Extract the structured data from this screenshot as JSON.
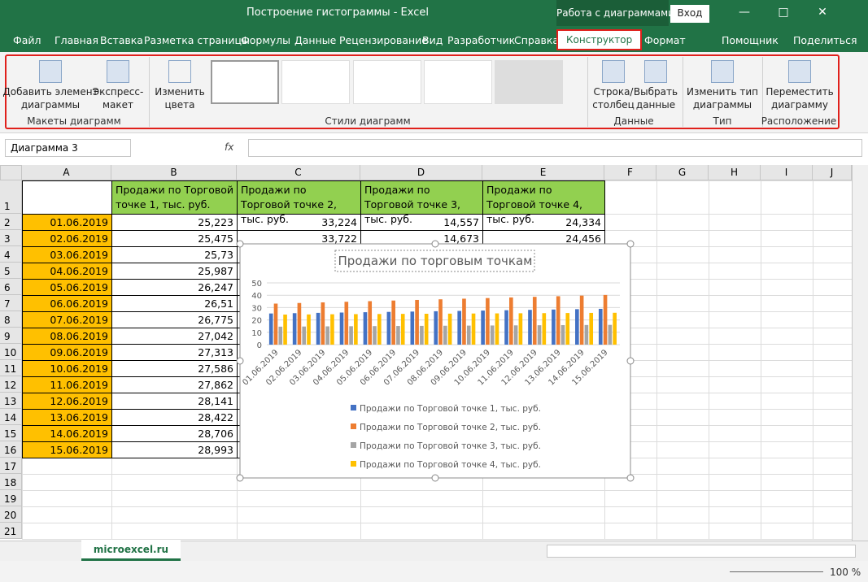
{
  "title_bar": {
    "title": "Построение гистограммы  -  Excel",
    "context_tab": "Работа с диаграммами",
    "sign_in": "Вход"
  },
  "ribbon": {
    "tabs": [
      "Файл",
      "Главная",
      "Вставка",
      "Разметка страницы",
      "Формулы",
      "Данные",
      "Рецензирование",
      "Вид",
      "Разработчик",
      "Справка",
      "Конструктор",
      "Формат",
      "Помощник",
      "Поделиться"
    ],
    "groups": [
      {
        "name": "Макеты диаграмм",
        "buttons": [
          [
            "Добавить элемент",
            "диаграммы"
          ],
          [
            "Экспресс-",
            "макет"
          ]
        ]
      },
      {
        "name": "Стили диаграмм",
        "buttons": [
          [
            "Изменить",
            "цвета"
          ]
        ]
      },
      {
        "name": "Данные",
        "buttons": [
          [
            "Строка/",
            "столбец"
          ],
          [
            "Выбрать",
            "данные"
          ]
        ]
      },
      {
        "name": "Тип",
        "buttons": [
          [
            "Изменить тип",
            "диаграммы"
          ]
        ]
      },
      {
        "name": "Расположение",
        "buttons": [
          [
            "Переместить",
            "диаграмму"
          ]
        ]
      }
    ]
  },
  "formula_bar": {
    "name_box": "Диаграмма 3",
    "fx": "fx"
  },
  "sheet": {
    "columns": [
      "A",
      "B",
      "C",
      "D",
      "E",
      "F",
      "G",
      "H",
      "I",
      "J"
    ],
    "row_numbers": [
      1,
      2,
      3,
      4,
      5,
      6,
      7,
      8,
      9,
      10,
      11,
      12,
      13,
      14,
      15,
      16,
      17,
      18,
      19,
      20,
      21
    ],
    "rows": [
      [
        null,
        "Продажи по Торговой точке 1, тыс. руб.",
        "Продажи по Торговой точке 2, тыс. руб.",
        "Продажи по Торговой точке 3, тыс. руб.",
        "Продажи по Торговой точке 4, тыс. руб."
      ],
      [
        "01.06.2019",
        "25,223",
        "33,224",
        "14,557",
        "24,334"
      ],
      [
        "02.06.2019",
        "25,475",
        "33,722",
        "14,673",
        "24,456"
      ],
      [
        "03.06.2019",
        "25,73",
        null,
        null,
        null
      ],
      [
        "04.06.2019",
        "25,987",
        null,
        null,
        null
      ],
      [
        "05.06.2019",
        "26,247",
        null,
        null,
        null
      ],
      [
        "06.06.2019",
        "26,51",
        null,
        null,
        null
      ],
      [
        "07.06.2019",
        "26,775",
        null,
        null,
        null
      ],
      [
        "08.06.2019",
        "27,042",
        null,
        null,
        null
      ],
      [
        "09.06.2019",
        "27,313",
        null,
        null,
        null
      ],
      [
        "10.06.2019",
        "27,586",
        null,
        null,
        null
      ],
      [
        "11.06.2019",
        "27,862",
        null,
        null,
        null
      ],
      [
        "12.06.2019",
        "28,141",
        null,
        null,
        null
      ],
      [
        "13.06.2019",
        "28,422",
        null,
        null,
        null
      ],
      [
        "14.06.2019",
        "28,706",
        null,
        null,
        null
      ],
      [
        "15.06.2019",
        "28,993",
        null,
        null,
        null
      ]
    ]
  },
  "chart_data": {
    "type": "bar",
    "title": "Продажи по торговым точкам",
    "categories": [
      "01.06.2019",
      "02.06.2019",
      "03.06.2019",
      "04.06.2019",
      "05.06.2019",
      "06.06.2019",
      "07.06.2019",
      "08.06.2019",
      "09.06.2019",
      "10.06.2019",
      "11.06.2019",
      "12.06.2019",
      "13.06.2019",
      "14.06.2019",
      "15.06.2019"
    ],
    "series": [
      {
        "name": "Продажи по Торговой точке 1, тыс. руб.",
        "color": "#4472c4",
        "values": [
          25.223,
          25.475,
          25.73,
          25.987,
          26.247,
          26.51,
          26.775,
          27.042,
          27.313,
          27.586,
          27.862,
          28.141,
          28.422,
          28.706,
          28.993
        ]
      },
      {
        "name": "Продажи по Торговой точке 2, тыс. руб.",
        "color": "#ed7d31",
        "values": [
          33.224,
          33.722,
          34.2,
          34.7,
          35.2,
          35.7,
          36.2,
          36.7,
          37.2,
          37.7,
          38.2,
          38.7,
          39.2,
          39.7,
          40.2
        ]
      },
      {
        "name": "Продажи по Торговой точке 3, тыс. руб.",
        "color": "#a5a5a5",
        "values": [
          14.557,
          14.673,
          14.8,
          14.9,
          15.0,
          15.1,
          15.2,
          15.3,
          15.4,
          15.5,
          15.6,
          15.7,
          15.8,
          15.9,
          16.0
        ]
      },
      {
        "name": "Продажи по Торговой точке 4, тыс. руб.",
        "color": "#ffc000",
        "values": [
          24.334,
          24.456,
          24.6,
          24.7,
          24.8,
          24.9,
          25.0,
          25.1,
          25.2,
          25.3,
          25.4,
          25.5,
          25.6,
          25.7,
          25.8
        ]
      }
    ],
    "ylim": [
      0,
      50
    ],
    "yticks": [
      0,
      10,
      20,
      30,
      40,
      50
    ],
    "grid": true
  },
  "sheet_tab": "microexcel.ru",
  "zoom": "100 %"
}
